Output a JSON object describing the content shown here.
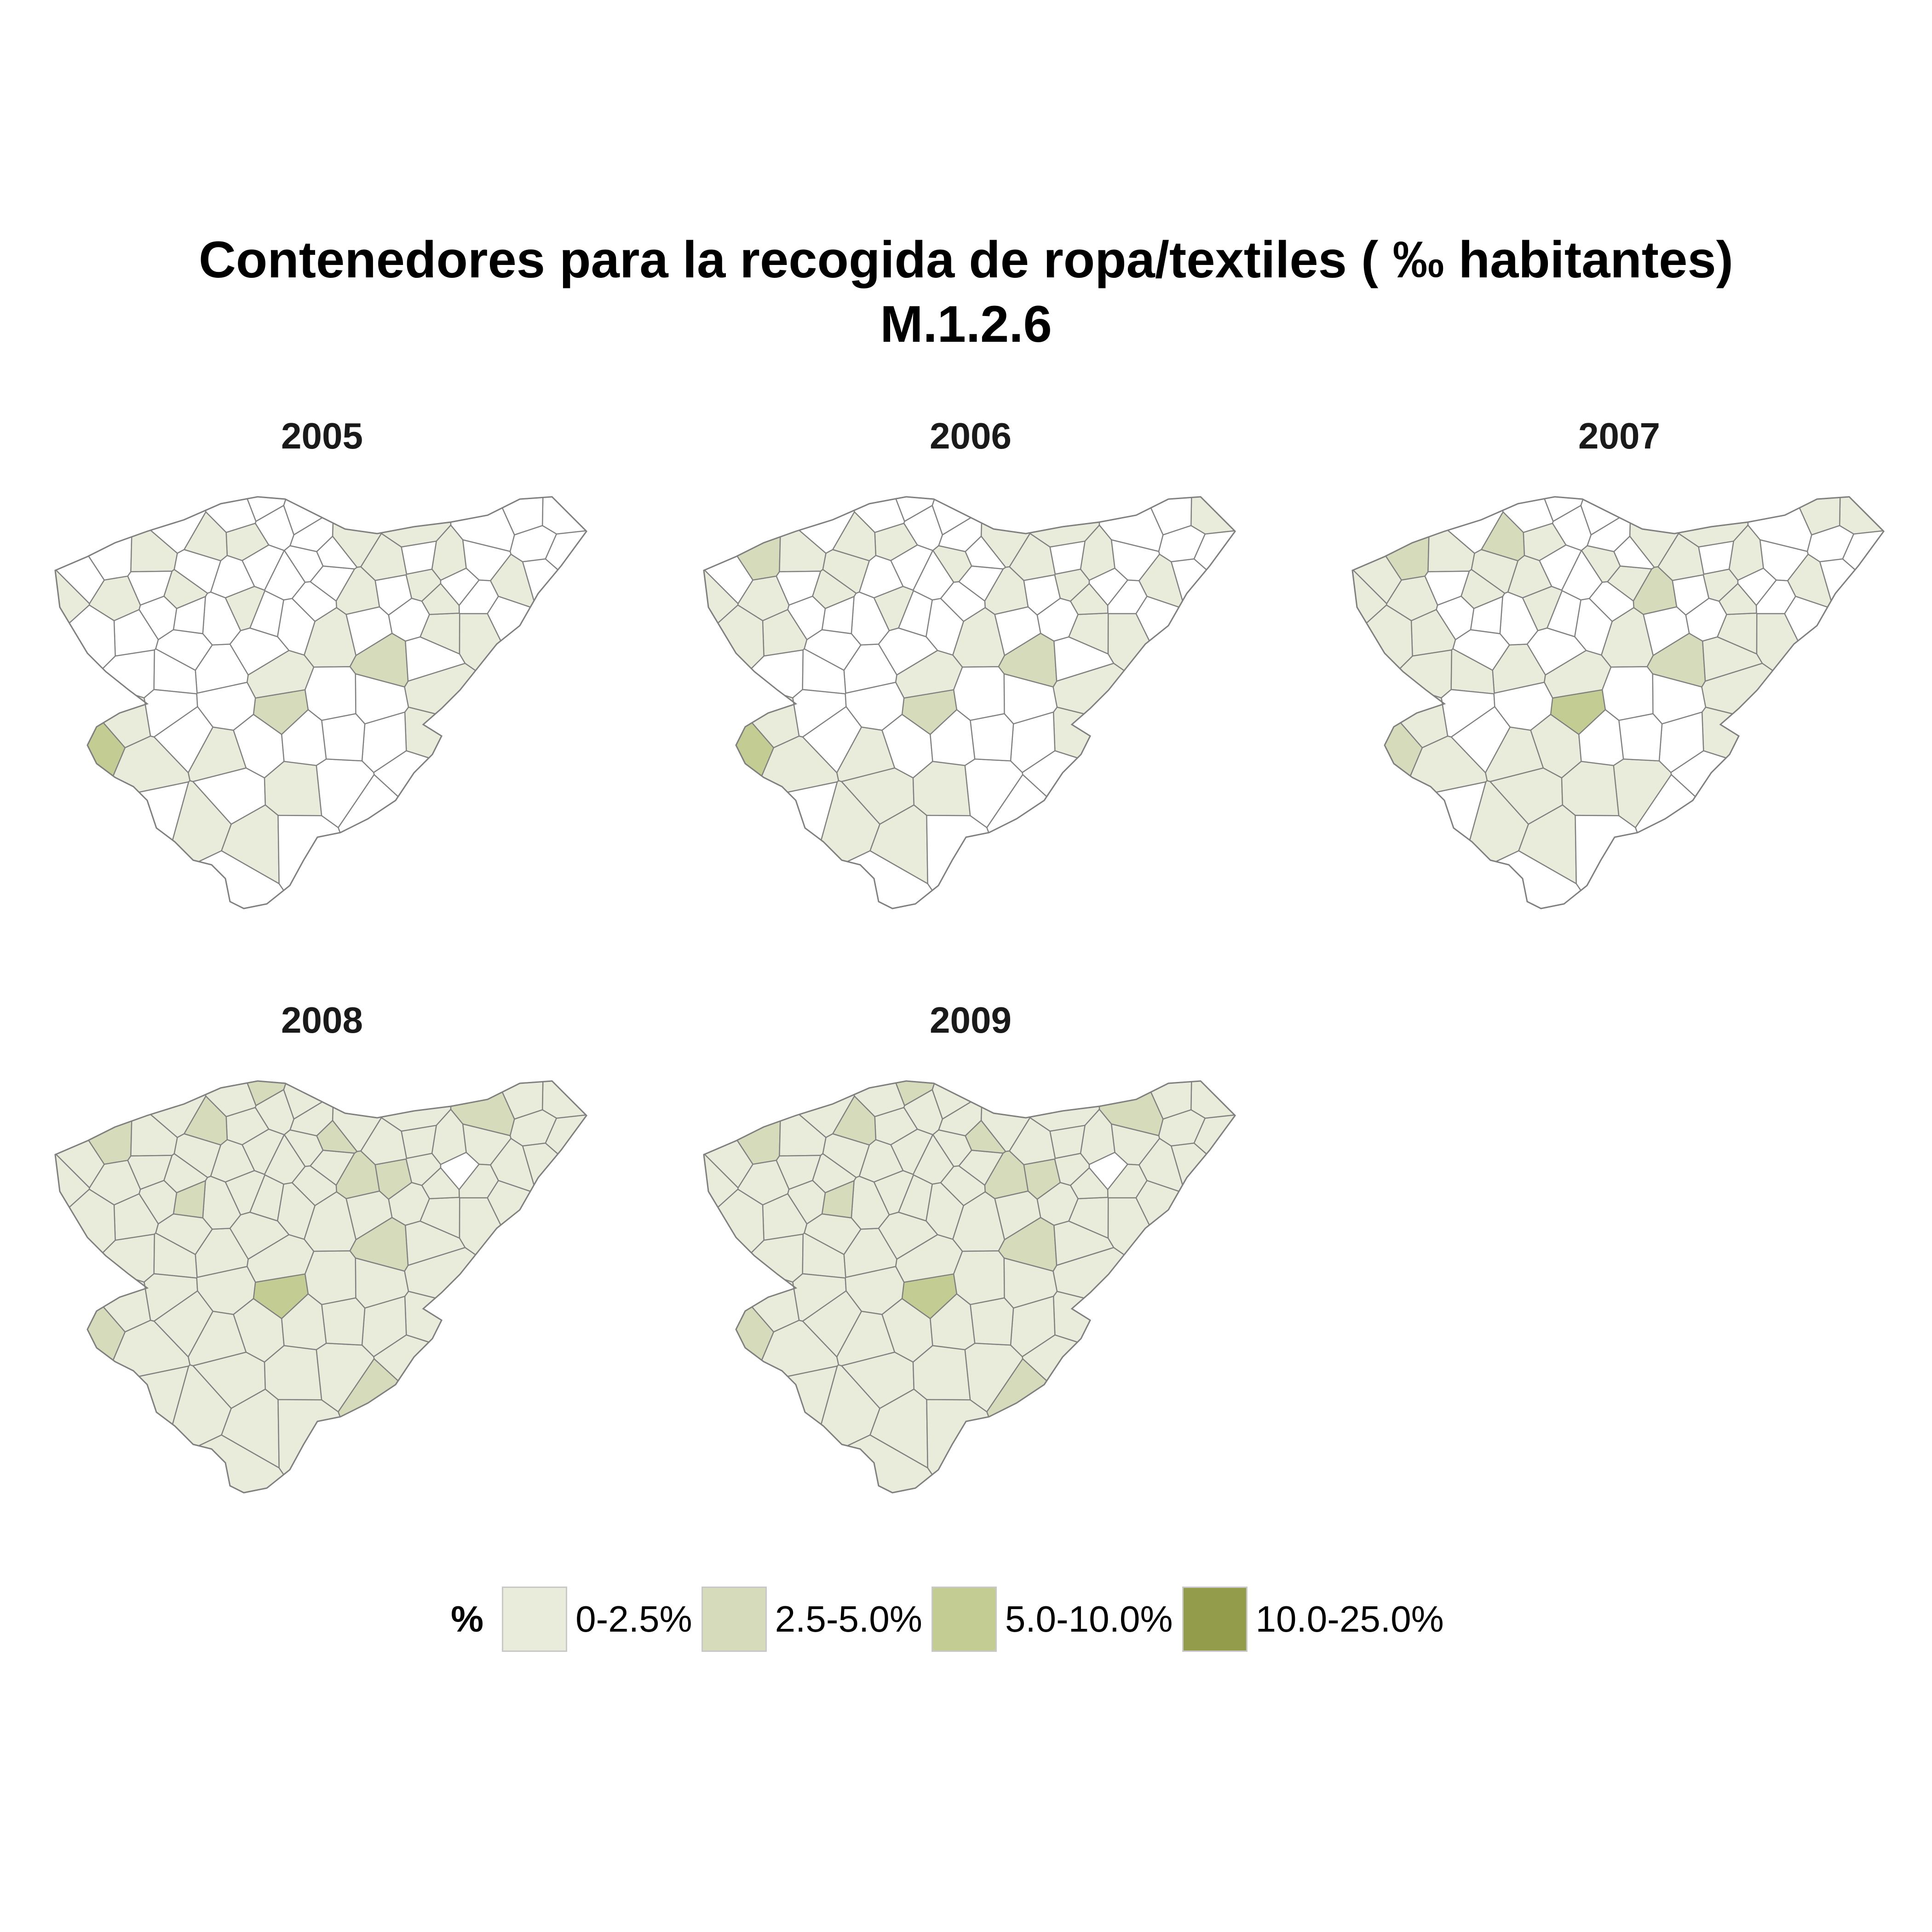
{
  "title": {
    "line1": "Contenedores para la recogida de ropa/textiles ( ‰ habitantes)",
    "line2": "M.1.2.6"
  },
  "legend": {
    "title": "%",
    "items": [
      {
        "label": "0-2.5%",
        "color": "#e9ecdb"
      },
      {
        "label": "2.5-5.0%",
        "color": "#d6dcbb"
      },
      {
        "label": "5.0-10.0%",
        "color": "#c3cc92"
      },
      {
        "label": "10.0-25.0%",
        "color": "#929c4b"
      }
    ]
  },
  "colors": {
    "none": "#ffffff",
    "border": "#7f7f7f"
  },
  "panels": [
    {
      "year": "2005",
      "classes": [
        0,
        0,
        1,
        0,
        0,
        1,
        1,
        0,
        1,
        1,
        0,
        0,
        0,
        0,
        1,
        1,
        0,
        1,
        0,
        1,
        0,
        1,
        0,
        1,
        0,
        1,
        0,
        1,
        1,
        1,
        1,
        2,
        1,
        1,
        1,
        3,
        1,
        1,
        1,
        2,
        1,
        1,
        0,
        0,
        0,
        0,
        0,
        0,
        0,
        1,
        0,
        1,
        0,
        0,
        0,
        0,
        0,
        0,
        0,
        0,
        0,
        0,
        0,
        0,
        1,
        0,
        0,
        0,
        0,
        0,
        0,
        0,
        0,
        0,
        0,
        0,
        0,
        0,
        0,
        0,
        0,
        0,
        0,
        0,
        0,
        0,
        0,
        0,
        0,
        0
      ]
    },
    {
      "year": "2006",
      "classes": [
        1,
        0,
        1,
        0,
        1,
        1,
        1,
        0,
        1,
        1,
        0,
        0,
        0,
        1,
        1,
        1,
        2,
        1,
        0,
        1,
        0,
        1,
        0,
        1,
        0,
        1,
        1,
        1,
        1,
        1,
        1,
        2,
        1,
        1,
        1,
        3,
        1,
        1,
        1,
        2,
        1,
        1,
        0,
        0,
        0,
        0,
        0,
        0,
        1,
        1,
        0,
        1,
        0,
        1,
        0,
        0,
        0,
        0,
        0,
        0,
        0,
        0,
        0,
        0,
        1,
        0,
        0,
        0,
        0,
        0,
        0,
        0,
        0,
        0,
        0,
        0,
        0,
        0,
        0,
        0,
        0,
        0,
        0,
        0,
        0,
        0,
        0,
        0,
        0,
        0
      ]
    },
    {
      "year": "2007",
      "classes": [
        1,
        1,
        1,
        0,
        1,
        1,
        1,
        1,
        1,
        1,
        1,
        0,
        1,
        1,
        1,
        1,
        2,
        1,
        1,
        1,
        0,
        1,
        1,
        1,
        0,
        1,
        1,
        1,
        1,
        1,
        2,
        3,
        2,
        1,
        1,
        2,
        1,
        1,
        1,
        2,
        1,
        1,
        0,
        1,
        0,
        1,
        1,
        0,
        1,
        1,
        0,
        1,
        0,
        1,
        0,
        0,
        1,
        0,
        0,
        0,
        0,
        0,
        0,
        0,
        1,
        0,
        0,
        0,
        0,
        0,
        0,
        0,
        0,
        0,
        0,
        0,
        0,
        0,
        0,
        0,
        0,
        0,
        0,
        0,
        0,
        0,
        0,
        0,
        0,
        0
      ]
    },
    {
      "year": "2008",
      "classes": [
        1,
        1,
        1,
        1,
        1,
        1,
        1,
        1,
        1,
        1,
        1,
        1,
        1,
        1,
        1,
        1,
        2,
        1,
        1,
        1,
        1,
        1,
        1,
        1,
        1,
        1,
        1,
        1,
        1,
        1,
        2,
        3,
        2,
        1,
        1,
        2,
        1,
        1,
        1,
        2,
        1,
        1,
        1,
        1,
        1,
        1,
        1,
        1,
        1,
        1,
        1,
        1,
        1,
        1,
        1,
        1,
        1,
        1,
        1,
        1,
        2,
        2,
        1,
        1,
        1,
        1,
        1,
        2,
        1,
        1,
        0,
        1,
        2,
        2,
        2,
        1,
        1,
        1,
        1,
        1,
        1,
        1,
        1,
        1,
        1,
        1,
        1,
        1,
        1,
        1
      ]
    },
    {
      "year": "2009",
      "classes": [
        1,
        1,
        1,
        1,
        1,
        1,
        1,
        1,
        1,
        1,
        1,
        1,
        1,
        1,
        1,
        1,
        2,
        1,
        1,
        1,
        1,
        1,
        1,
        1,
        1,
        1,
        1,
        1,
        1,
        1,
        2,
        3,
        2,
        1,
        1,
        2,
        1,
        1,
        1,
        2,
        1,
        1,
        1,
        1,
        1,
        1,
        1,
        1,
        1,
        1,
        1,
        1,
        1,
        1,
        1,
        1,
        1,
        1,
        1,
        1,
        2,
        2,
        1,
        1,
        1,
        1,
        1,
        2,
        1,
        1,
        0,
        1,
        2,
        2,
        2,
        1,
        1,
        1,
        1,
        1,
        1,
        1,
        1,
        1,
        1,
        1,
        1,
        1,
        1,
        1
      ]
    }
  ]
}
